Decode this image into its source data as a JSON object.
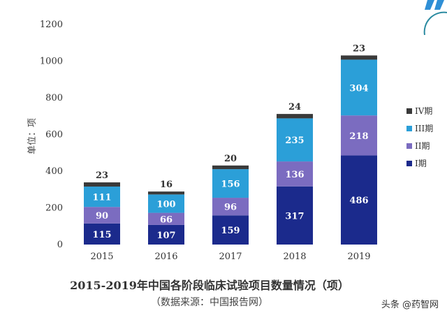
{
  "chart_data": {
    "type": "bar",
    "stacked": true,
    "categories": [
      "2015",
      "2016",
      "2017",
      "2018",
      "2019"
    ],
    "series": [
      {
        "name": "I期",
        "color": "#1b2a8c",
        "values": [
          115,
          107,
          159,
          317,
          486
        ]
      },
      {
        "name": "II期",
        "color": "#7b6cc0",
        "values": [
          90,
          66,
          96,
          136,
          218
        ]
      },
      {
        "name": "III期",
        "color": "#2b9fd8",
        "values": [
          111,
          100,
          156,
          235,
          304
        ]
      },
      {
        "name": "IV期",
        "color": "#3a3a3a",
        "values": [
          23,
          16,
          20,
          24,
          23
        ]
      }
    ],
    "title": "2015-2019年中国各阶段临床试验项目数量情况（项）",
    "subtitle": "（数据来源：中国报告网）",
    "ylabel": "单位：项",
    "xlabel": "",
    "ylim": [
      0,
      1200
    ],
    "yticks": [
      0,
      200,
      400,
      600,
      800,
      1000,
      1200
    ],
    "grid": false,
    "legend": "right"
  },
  "watermark": "头条 @药智网"
}
